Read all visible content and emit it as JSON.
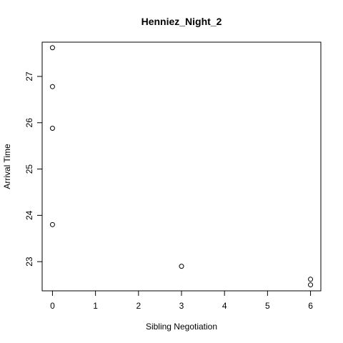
{
  "chart_data": {
    "type": "scatter",
    "title": "Henniez_Night_2",
    "xlabel": "Sibling Negotiation",
    "ylabel": "Arrival Time",
    "x_ticks": [
      0,
      1,
      2,
      3,
      4,
      5,
      6
    ],
    "y_ticks": [
      23,
      24,
      25,
      26,
      27
    ],
    "xlim": [
      -0.24,
      6.24
    ],
    "ylim": [
      22.37,
      27.74
    ],
    "grid": false,
    "legend": "none",
    "marker": "open-circle",
    "points": [
      {
        "x": 0,
        "y": 27.62
      },
      {
        "x": 0,
        "y": 26.78
      },
      {
        "x": 0,
        "y": 25.88
      },
      {
        "x": 0,
        "y": 23.8
      },
      {
        "x": 3,
        "y": 22.9
      },
      {
        "x": 6,
        "y": 22.62
      },
      {
        "x": 6,
        "y": 22.5
      }
    ]
  }
}
